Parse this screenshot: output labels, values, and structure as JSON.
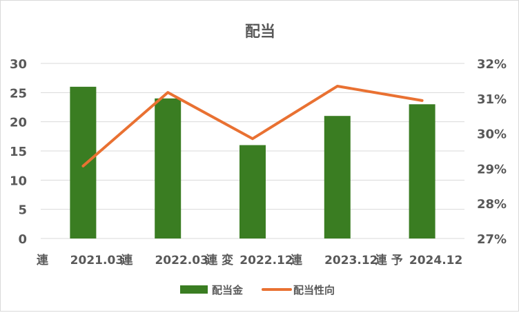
{
  "chart_data": {
    "type": "bar+line",
    "title": "配当",
    "categories": [
      "2021.03",
      "2022.03",
      "2022.12",
      "2023.12",
      "2024.12"
    ],
    "category_annotations": [
      "連",
      "連",
      "連 変",
      "連",
      "連 予"
    ],
    "series": [
      {
        "name": "配当金",
        "type": "bar",
        "axis": "left",
        "color": "#3a7d22",
        "values": [
          26,
          24,
          16,
          21,
          23
        ]
      },
      {
        "name": "配当性向",
        "type": "line",
        "axis": "right",
        "color": "#e97132",
        "values": [
          29.07,
          31.17,
          29.85,
          31.35,
          30.94
        ]
      }
    ],
    "left_axis": {
      "min": 0,
      "max": 30,
      "step": 5,
      "ticks": [
        "0",
        "5",
        "10",
        "15",
        "20",
        "25",
        "30"
      ]
    },
    "right_axis": {
      "min": 27,
      "max": 32,
      "step": 1,
      "ticks": [
        "27%",
        "28%",
        "29%",
        "30%",
        "31%",
        "32%"
      ]
    },
    "grid": true,
    "legend": "bottom"
  }
}
